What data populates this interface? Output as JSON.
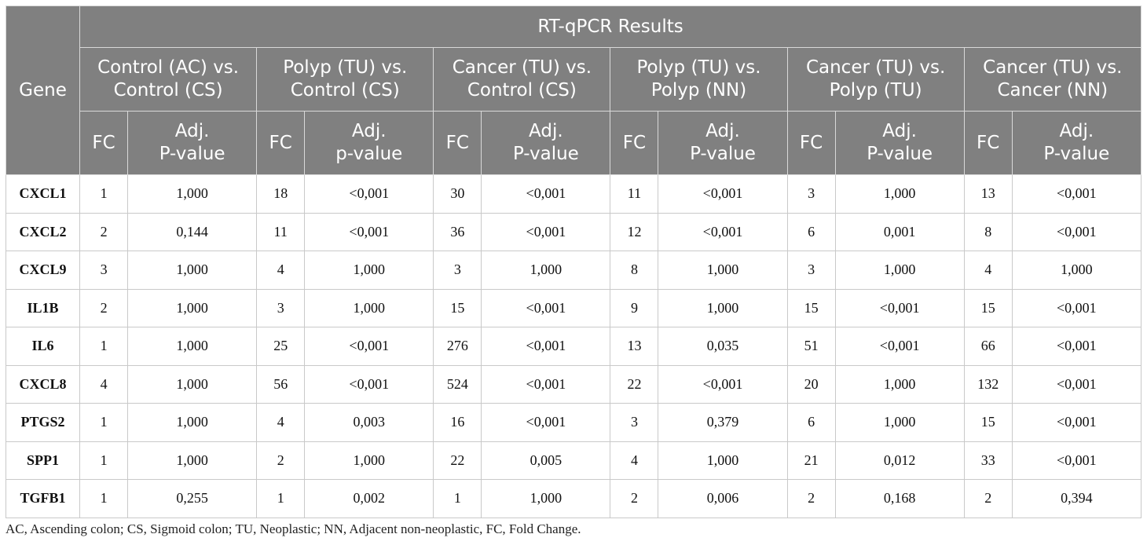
{
  "table": {
    "gene_header": "Gene",
    "group_header": "RT-qPCR Results",
    "comparisons": [
      [
        "Control (AC) vs.",
        "Control (CS)"
      ],
      [
        "Polyp (TU) vs.",
        "Control (CS)"
      ],
      [
        "Cancer (TU) vs.",
        "Control (CS)"
      ],
      [
        "Polyp (TU) vs.",
        "Polyp (NN)"
      ],
      [
        "Cancer (TU) vs.",
        "Polyp (TU)"
      ],
      [
        "Cancer (TU) vs.",
        "Cancer (NN)"
      ]
    ],
    "sub_headers": [
      [
        "FC",
        "Adj.",
        "P-value"
      ],
      [
        "FC",
        "Adj.",
        "p-value"
      ],
      [
        "FC",
        "Adj.",
        "P-value"
      ],
      [
        "FC",
        "Adj.",
        "P-value"
      ],
      [
        "FC",
        "Adj.",
        "P-value"
      ],
      [
        "FC",
        "Adj.",
        "P-value"
      ]
    ],
    "rows": [
      [
        "CXCL1",
        "1",
        "1,000",
        "18",
        "<0,001",
        "30",
        "<0,001",
        "11",
        "<0,001",
        "3",
        "1,000",
        "13",
        "<0,001"
      ],
      [
        "CXCL2",
        "2",
        "0,144",
        "11",
        "<0,001",
        "36",
        "<0,001",
        "12",
        "<0,001",
        "6",
        "0,001",
        "8",
        "<0,001"
      ],
      [
        "CXCL9",
        "3",
        "1,000",
        "4",
        "1,000",
        "3",
        "1,000",
        "8",
        "1,000",
        "3",
        "1,000",
        "4",
        "1,000"
      ],
      [
        "IL1B",
        "2",
        "1,000",
        "3",
        "1,000",
        "15",
        "<0,001",
        "9",
        "1,000",
        "15",
        "<0,001",
        "15",
        "<0,001"
      ],
      [
        "IL6",
        "1",
        "1,000",
        "25",
        "<0,001",
        "276",
        "<0,001",
        "13",
        "0,035",
        "51",
        "<0,001",
        "66",
        "<0,001"
      ],
      [
        "CXCL8",
        "4",
        "1,000",
        "56",
        "<0,001",
        "524",
        "<0,001",
        "22",
        "<0,001",
        "20",
        "1,000",
        "132",
        "<0,001"
      ],
      [
        "PTGS2",
        "1",
        "1,000",
        "4",
        "0,003",
        "16",
        "<0,001",
        "3",
        "0,379",
        "6",
        "1,000",
        "15",
        "<0,001"
      ],
      [
        "SPP1",
        "1",
        "1,000",
        "2",
        "1,000",
        "22",
        "0,005",
        "4",
        "1,000",
        "21",
        "0,012",
        "33",
        "<0,001"
      ],
      [
        "TGFB1",
        "1",
        "0,255",
        "1",
        "0,002",
        "1",
        "1,000",
        "2",
        "0,006",
        "2",
        "0,168",
        "2",
        "0,394"
      ]
    ]
  },
  "footnote": "AC, Ascending colon; CS, Sigmoid colon; TU, Neoplastic; NN, Adjacent non-neoplastic, FC, Fold Change."
}
